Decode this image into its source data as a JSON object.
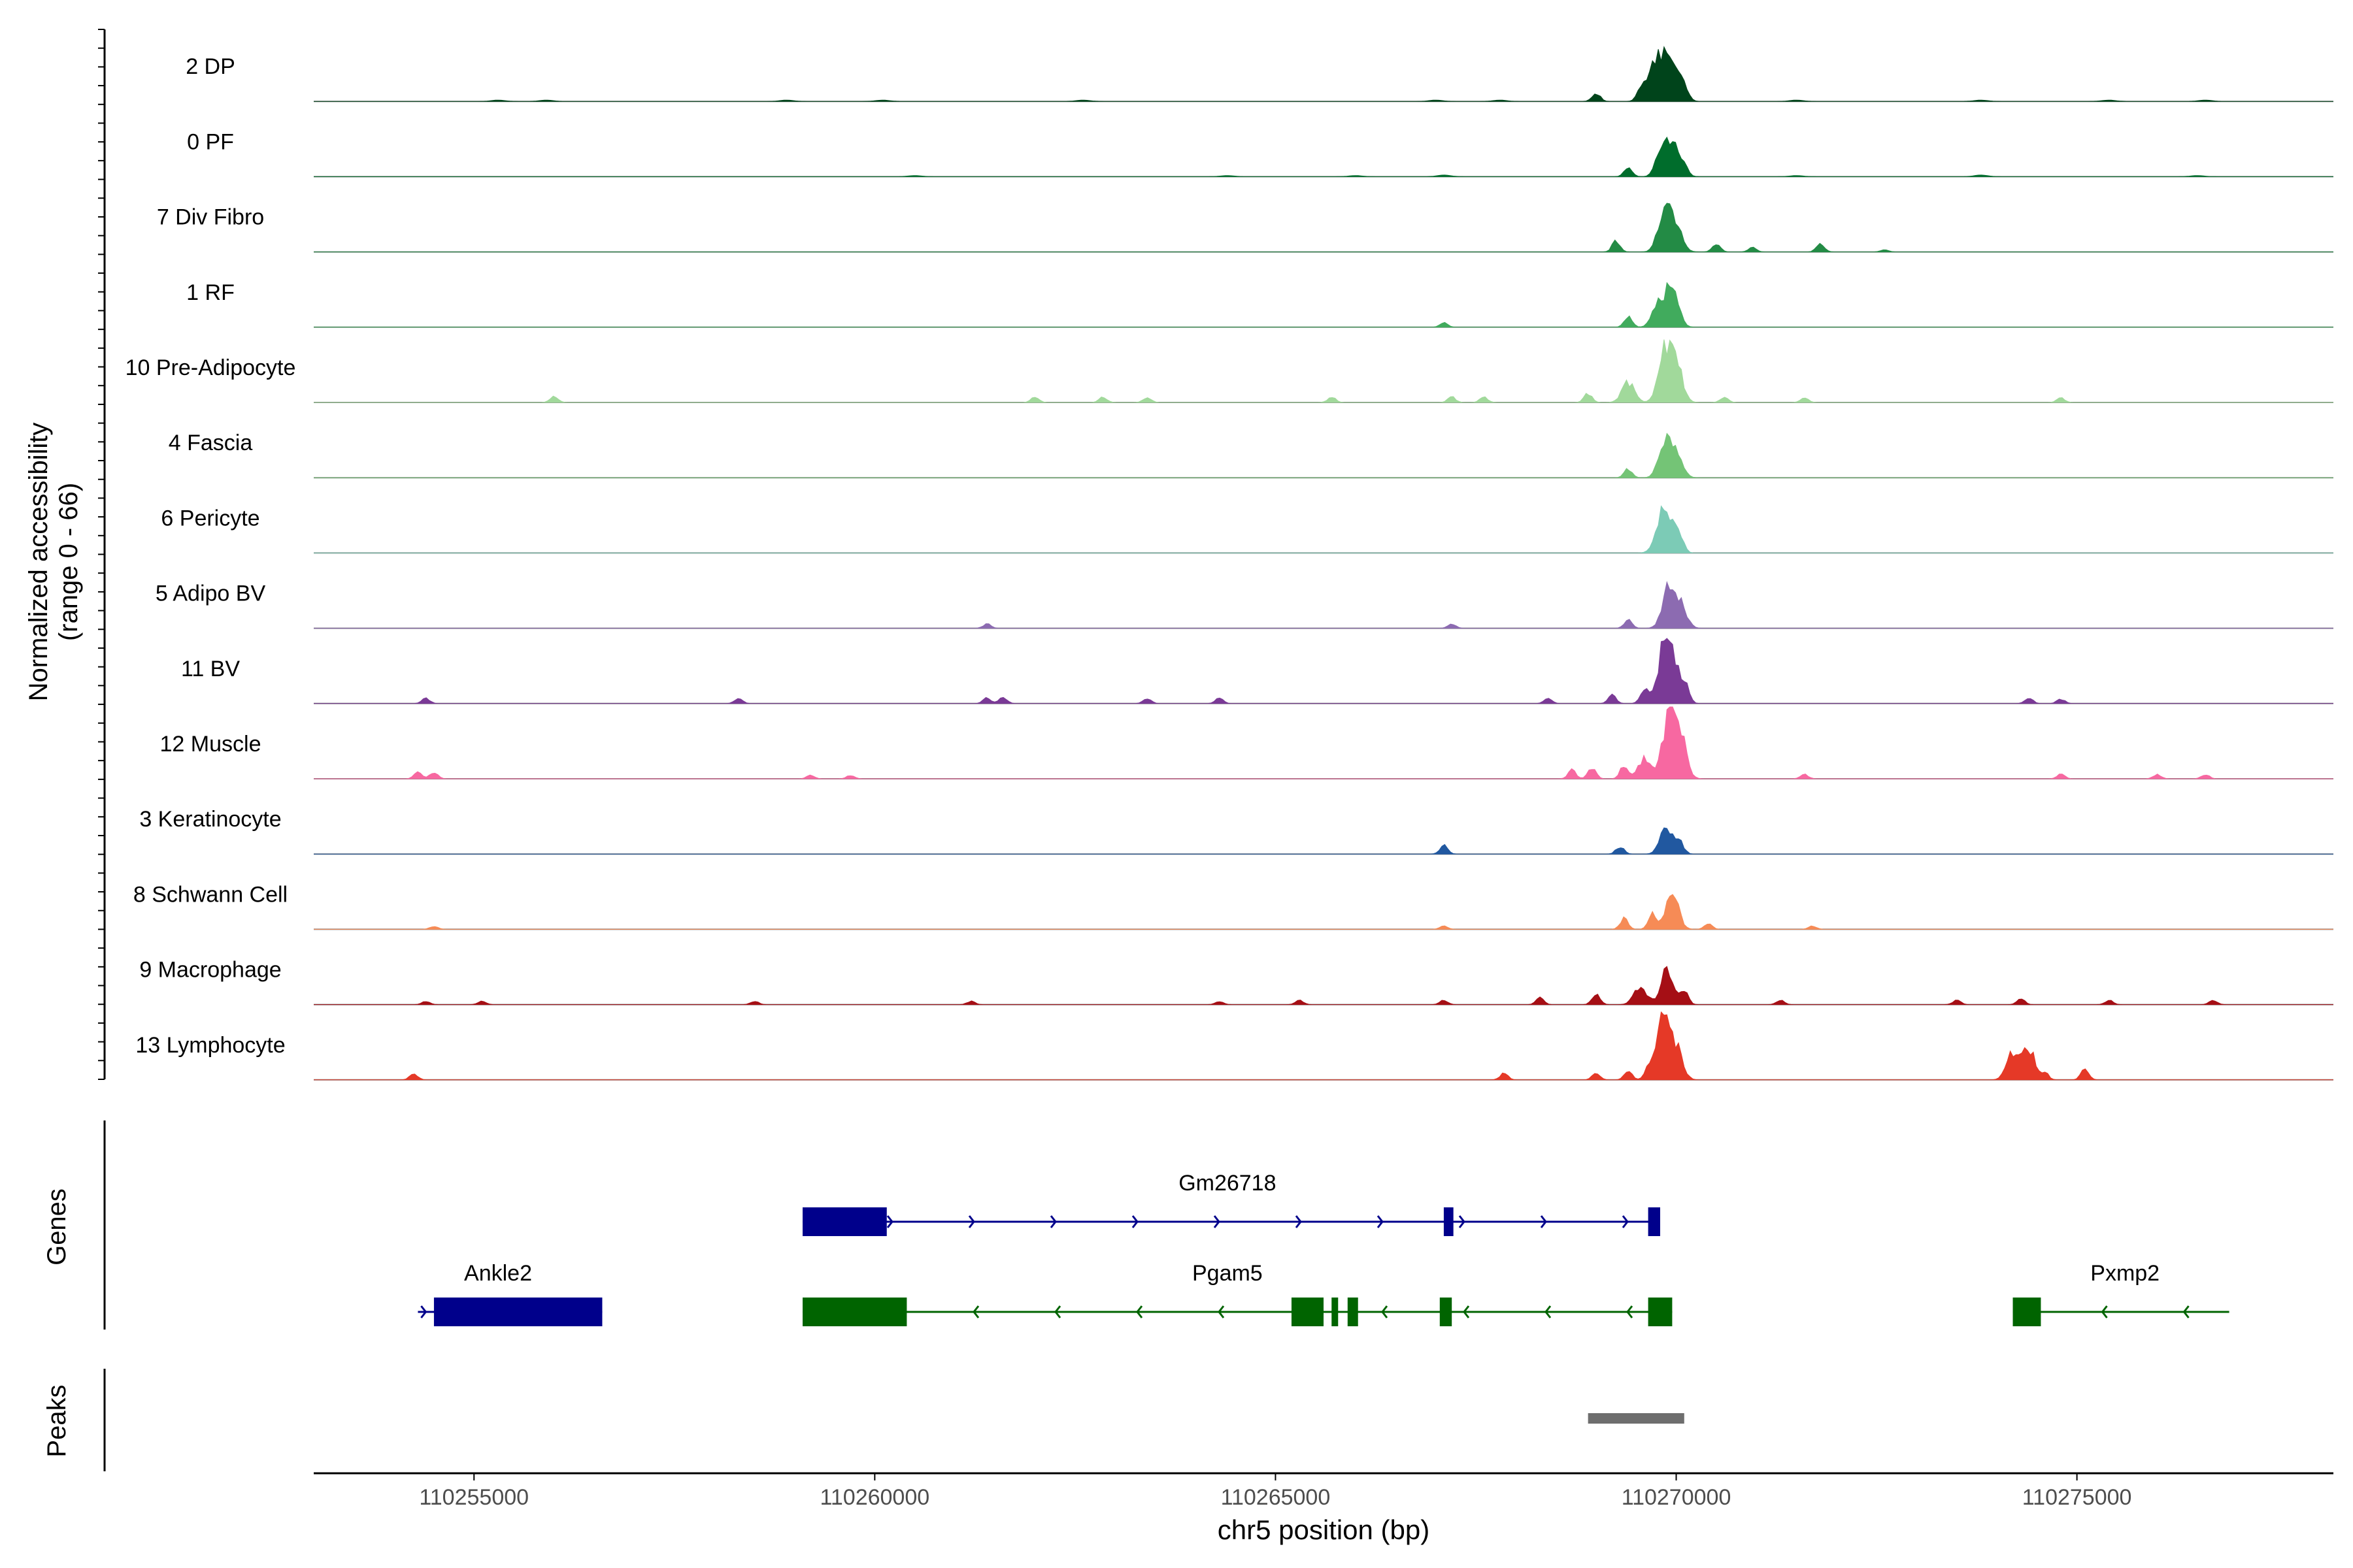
{
  "chart_data": {
    "type": "area",
    "title": "",
    "chromosome": "chr5",
    "xlabel": "chr5 position (bp)",
    "ylabel": "Normalized accessibility",
    "ylabel_range": "(range 0 - 66)",
    "xlim": [
      110253000,
      110278200
    ],
    "ylim": [
      0,
      66
    ],
    "x_ticks": [
      110255000,
      110260000,
      110265000,
      110270000,
      110275000
    ],
    "x_tick_labels": [
      "110255000",
      "110260000",
      "110265000",
      "110270000",
      "110275000"
    ],
    "panel_labels": {
      "genes": "Genes",
      "peaks": "Peaks"
    },
    "tracks": [
      {
        "name": "2 DP",
        "color": "#00441b",
        "peaks": [
          [
            110269000,
            8
          ],
          [
            110269550,
            8
          ],
          [
            110269700,
            25
          ],
          [
            110269850,
            40
          ],
          [
            110270000,
            30
          ],
          [
            110270130,
            4
          ]
        ],
        "noise": [
          [
            110255300,
            1.2
          ],
          [
            110255900,
            1.2
          ],
          [
            110258900,
            1.2
          ],
          [
            110260100,
            1.2
          ],
          [
            110262600,
            1.2
          ],
          [
            110267000,
            1.2
          ],
          [
            110267800,
            1.2
          ],
          [
            110271500,
            1.2
          ],
          [
            110273800,
            1.2
          ],
          [
            110275400,
            1.2
          ],
          [
            110276600,
            1.2
          ]
        ]
      },
      {
        "name": "0 PF",
        "color": "#006d2c",
        "peaks": [
          [
            110269400,
            9
          ],
          [
            110269850,
            36
          ],
          [
            110270000,
            20
          ],
          [
            110270100,
            5
          ]
        ],
        "noise": [
          [
            110260500,
            1
          ],
          [
            110264400,
            1
          ],
          [
            110266000,
            1
          ],
          [
            110267100,
            1.5
          ],
          [
            110271500,
            1
          ],
          [
            110273800,
            1.5
          ],
          [
            110276500,
            1
          ]
        ]
      },
      {
        "name": "7 Div Fibro",
        "color": "#238b45",
        "peaks": [
          [
            110269250,
            10
          ],
          [
            110269850,
            35
          ],
          [
            110270000,
            24
          ],
          [
            110270500,
            8
          ],
          [
            110270950,
            4
          ],
          [
            110271800,
            8
          ],
          [
            110272600,
            2
          ]
        ]
      },
      {
        "name": "1 RF",
        "color": "#41ab5d",
        "peaks": [
          [
            110267100,
            4
          ],
          [
            110269400,
            10
          ],
          [
            110269780,
            20
          ],
          [
            110269950,
            38
          ]
        ]
      },
      {
        "name": "10 Pre-Adipocyte",
        "color": "#a1d99b",
        "peaks": [
          [
            110256000,
            6
          ],
          [
            110262000,
            5
          ],
          [
            110262850,
            5
          ],
          [
            110263400,
            5
          ],
          [
            110265700,
            5
          ],
          [
            110267200,
            5
          ],
          [
            110267600,
            5
          ],
          [
            110268900,
            8
          ],
          [
            110269400,
            18
          ],
          [
            110269850,
            46
          ],
          [
            110270000,
            35
          ],
          [
            110270600,
            5
          ],
          [
            110271600,
            4
          ],
          [
            110274800,
            4
          ]
        ]
      },
      {
        "name": "4 Fascia",
        "color": "#74c476",
        "peaks": [
          [
            110269400,
            8
          ],
          [
            110269860,
            30
          ],
          [
            110270000,
            22
          ]
        ]
      },
      {
        "name": "6 Pericyte",
        "color": "#7ccbb6",
        "peaks": [
          [
            110269800,
            22
          ],
          [
            110269900,
            30
          ],
          [
            110270050,
            15
          ]
        ]
      },
      {
        "name": "5 Adipo BV",
        "color": "#8c6bb1",
        "peaks": [
          [
            110261400,
            4
          ],
          [
            110267200,
            4
          ],
          [
            110269400,
            8
          ],
          [
            110269900,
            34
          ],
          [
            110270050,
            22
          ]
        ]
      },
      {
        "name": "11 BV",
        "color": "#7a3a96",
        "peaks": [
          [
            110254400,
            5
          ],
          [
            110258300,
            5
          ],
          [
            110261400,
            5
          ],
          [
            110261600,
            6
          ],
          [
            110263400,
            5
          ],
          [
            110264300,
            5
          ],
          [
            110268400,
            5
          ],
          [
            110269200,
            8
          ],
          [
            110269600,
            14
          ],
          [
            110269850,
            52
          ],
          [
            110270000,
            30
          ],
          [
            110270120,
            10
          ],
          [
            110274400,
            5
          ],
          [
            110274800,
            4
          ]
        ]
      },
      {
        "name": "12 Muscle",
        "color": "#f768a1",
        "peaks": [
          [
            110254300,
            6
          ],
          [
            110254500,
            6
          ],
          [
            110259200,
            3
          ],
          [
            110259700,
            3
          ],
          [
            110268700,
            8
          ],
          [
            110268950,
            10
          ],
          [
            110269350,
            12
          ],
          [
            110269600,
            18
          ],
          [
            110269900,
            52
          ],
          [
            110270050,
            38
          ],
          [
            110271600,
            4
          ],
          [
            110274800,
            4
          ],
          [
            110276000,
            4
          ],
          [
            110276600,
            4
          ]
        ]
      },
      {
        "name": "3 Keratinocyte",
        "color": "#2158a0",
        "peaks": [
          [
            110267100,
            8
          ],
          [
            110269300,
            7
          ],
          [
            110269880,
            24
          ],
          [
            110270050,
            10
          ]
        ]
      },
      {
        "name": "8 Schwann Cell",
        "color": "#f68b56",
        "peaks": [
          [
            110254500,
            3
          ],
          [
            110267100,
            3
          ],
          [
            110269350,
            10
          ],
          [
            110269700,
            14
          ],
          [
            110269950,
            34
          ],
          [
            110270400,
            5
          ],
          [
            110271700,
            3
          ]
        ]
      },
      {
        "name": "9 Macrophage",
        "color": "#a50f15",
        "peaks": [
          [
            110254400,
            3
          ],
          [
            110255100,
            3
          ],
          [
            110258500,
            3
          ],
          [
            110261200,
            3
          ],
          [
            110264300,
            3
          ],
          [
            110265300,
            4
          ],
          [
            110267100,
            4
          ],
          [
            110268300,
            6
          ],
          [
            110269000,
            10
          ],
          [
            110269550,
            16
          ],
          [
            110269880,
            30
          ],
          [
            110270100,
            12
          ],
          [
            110271300,
            4
          ],
          [
            110273500,
            4
          ],
          [
            110274300,
            5
          ],
          [
            110275400,
            4
          ],
          [
            110276700,
            4
          ]
        ]
      },
      {
        "name": "13 Lymphocyte",
        "color": "#e53927",
        "peaks": [
          [
            110254250,
            6
          ],
          [
            110267850,
            6
          ],
          [
            110269000,
            6
          ],
          [
            110269400,
            8
          ],
          [
            110269650,
            10
          ],
          [
            110269830,
            52
          ],
          [
            110270000,
            30
          ],
          [
            110274200,
            24
          ],
          [
            110274400,
            28
          ],
          [
            110274600,
            6
          ],
          [
            110275100,
            10
          ]
        ]
      }
    ],
    "genes": [
      {
        "name": "Gm26718",
        "strand": "+",
        "row": 1,
        "color": "#00008b",
        "start": 110259100,
        "end": 110269800,
        "label_pos": 110264400,
        "exons": [
          [
            110259100,
            110260150
          ],
          [
            110267100,
            110267220
          ],
          [
            110269650,
            110269800
          ]
        ]
      },
      {
        "name": "Ankle2",
        "strand": "+",
        "row": 2,
        "color": "#00008b",
        "start": 110254300,
        "end": 110256600,
        "label_pos": 110255300,
        "exons": [
          [
            110254500,
            110256600
          ]
        ]
      },
      {
        "name": "Pgam5",
        "strand": "-",
        "row": 2,
        "color": "#006400",
        "start": 110259100,
        "end": 110269950,
        "label_pos": 110264400,
        "exons": [
          [
            110259100,
            110260400
          ],
          [
            110265200,
            110265600
          ],
          [
            110265700,
            110265780
          ],
          [
            110265900,
            110266030
          ],
          [
            110267050,
            110267200
          ],
          [
            110269650,
            110269950
          ]
        ]
      },
      {
        "name": "Pxmp2",
        "strand": "-",
        "row": 2,
        "color": "#006400",
        "start": 110274200,
        "end": 110276900,
        "label_pos": 110275600,
        "exons": [
          [
            110274200,
            110274550
          ]
        ]
      }
    ],
    "peaks_track": [
      {
        "start": 110268900,
        "end": 110270100,
        "color": "#6e6e6e"
      }
    ]
  }
}
